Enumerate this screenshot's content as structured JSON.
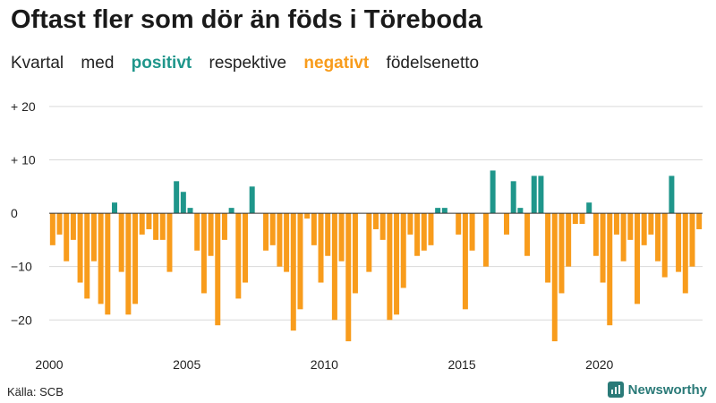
{
  "chart_data": {
    "type": "bar",
    "title": "Oftast fler som dör än föds i Töreboda",
    "subtitle": {
      "prefix": "Kvartal",
      "med": "med",
      "positive_word": "positivt",
      "middle": "respektive",
      "negative_word": "negativt",
      "suffix": "födelsenetto"
    },
    "colors": {
      "positive": "#1f968b",
      "negative": "#f89c1c",
      "grid": "#d9d9d9",
      "zero": "#333333"
    },
    "ylim": [
      -26,
      22
    ],
    "yticks": [
      {
        "value": 20,
        "label": "+ 20"
      },
      {
        "value": 10,
        "label": "+ 10"
      },
      {
        "value": 0,
        "label": "0"
      },
      {
        "value": -10,
        "label": "−10"
      },
      {
        "value": -20,
        "label": "−20"
      }
    ],
    "xstart": 2000,
    "quarters_per_year": 4,
    "xticks": [
      {
        "year": 2000,
        "label": "2000"
      },
      {
        "year": 2005,
        "label": "2005"
      },
      {
        "year": 2010,
        "label": "2010"
      },
      {
        "year": 2015,
        "label": "2015"
      },
      {
        "year": 2020,
        "label": "2020"
      }
    ],
    "values": [
      -6,
      -4,
      -9,
      -5,
      -13,
      -16,
      -9,
      -17,
      -19,
      2,
      -11,
      -19,
      -17,
      -4,
      -3,
      -5,
      -5,
      -11,
      6,
      4,
      1,
      -7,
      -15,
      -8,
      -21,
      -5,
      1,
      -16,
      -13,
      5,
      0,
      -7,
      -6,
      -10,
      -11,
      -22,
      -18,
      -1,
      -6,
      -13,
      -8,
      -20,
      -9,
      -24,
      -15,
      0,
      -11,
      -3,
      -5,
      -20,
      -19,
      -14,
      -4,
      -8,
      -7,
      -6,
      1,
      1,
      0,
      -4,
      -18,
      -7,
      0,
      -10,
      8,
      0,
      -4,
      6,
      1,
      -8,
      7,
      7,
      -13,
      -24,
      -15,
      -10,
      -2,
      -2,
      2,
      -8,
      -13,
      -21,
      -4,
      -9,
      -5,
      -17,
      -6,
      -4,
      -9,
      -12,
      7,
      -11,
      -15,
      -10,
      -3
    ],
    "source": "Källa: SCB",
    "brand": "Newsworthy"
  }
}
